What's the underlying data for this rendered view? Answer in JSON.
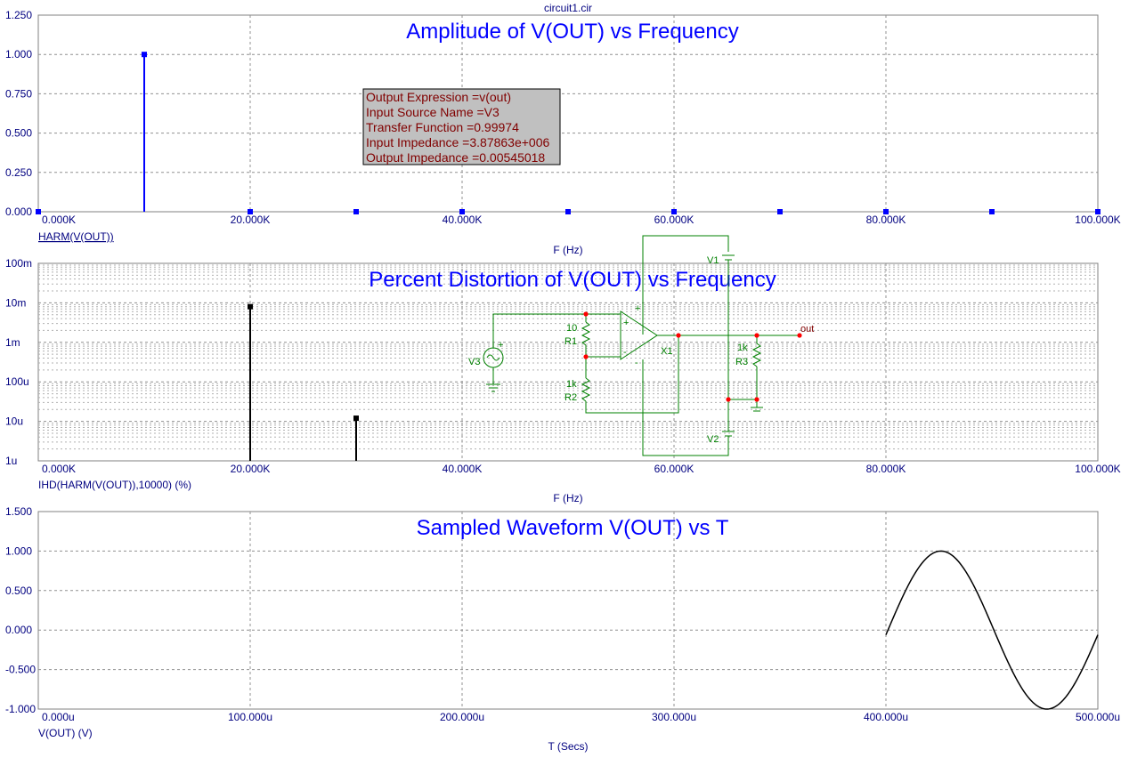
{
  "document_title": "circuit1.cir",
  "info_box": {
    "lines": [
      "Output Expression =v(out)",
      "Input Source Name =V3",
      "Transfer Function =0.99974",
      "Input Impedance =3.87863e+006",
      "Output Impedance =0.00545018"
    ]
  },
  "schematic": {
    "labels": {
      "v1": "V1",
      "v2": "V2",
      "v3": "V3",
      "x1": "X1",
      "r1": "R1",
      "r1_val": "10",
      "r2": "R2",
      "r2_val": "1k",
      "r3": "R3",
      "r3_val": "1k",
      "out": "out",
      "plus": "+",
      "minus": "-"
    }
  },
  "chart_data": [
    {
      "type": "bar",
      "title": "Amplitude of V(OUT) vs Frequency",
      "ylabel": "HARM(V(OUT))",
      "xlabel": "F (Hz)",
      "xlim": [
        0,
        100000
      ],
      "ylim": [
        0,
        1.25
      ],
      "xticks": [
        "0.000K",
        "20.000K",
        "40.000K",
        "60.000K",
        "80.000K",
        "100.000K"
      ],
      "yticks": [
        "0.000",
        "0.250",
        "0.500",
        "0.750",
        "1.000",
        "1.250"
      ],
      "grid": true,
      "color": "#0000ff",
      "x": [
        0,
        10000,
        20000,
        30000,
        40000,
        50000,
        60000,
        70000,
        80000,
        90000,
        100000
      ],
      "values": [
        0,
        1.0,
        0,
        0,
        0,
        0,
        0,
        0,
        0,
        0,
        0
      ]
    },
    {
      "type": "bar",
      "title": "Percent Distortion of V(OUT) vs Frequency",
      "ylabel": "IHD(HARM(V(OUT)),10000) (%)",
      "xlabel": "F (Hz)",
      "xlim": [
        0,
        100000
      ],
      "yscale": "log",
      "ylim": [
        1e-06,
        0.1
      ],
      "xticks": [
        "0.000K",
        "20.000K",
        "40.000K",
        "60.000K",
        "80.000K",
        "100.000K"
      ],
      "yticks": [
        "1u",
        "10u",
        "100u",
        "1m",
        "10m",
        "100m"
      ],
      "grid": true,
      "color": "#000000",
      "x": [
        20000,
        30000
      ],
      "values": [
        0.008,
        1.2e-05
      ]
    },
    {
      "type": "line",
      "title": "Sampled Waveform  V(OUT) vs T",
      "ylabel": "V(OUT) (V)",
      "xlabel": "T (Secs)",
      "xlim": [
        0,
        0.0005
      ],
      "ylim": [
        -1,
        1.5
      ],
      "xticks": [
        "0.000u",
        "100.000u",
        "200.000u",
        "300.000u",
        "400.000u",
        "500.000u"
      ],
      "yticks": [
        "-1.000",
        "-0.500",
        "0.000",
        "0.500",
        "1.000",
        "1.500"
      ],
      "grid": true,
      "color": "#000000",
      "x": [
        0.0004,
        0.0005
      ],
      "signal": {
        "amplitude": 1.0,
        "frequency": 10000,
        "offset": -0.06
      }
    }
  ]
}
